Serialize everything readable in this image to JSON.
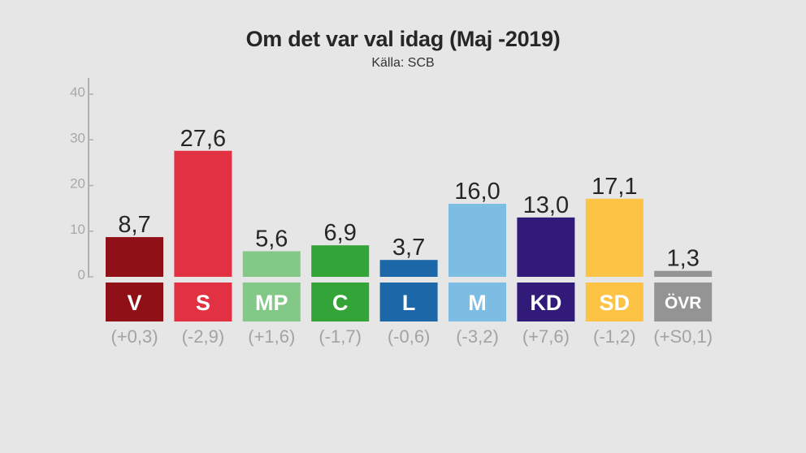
{
  "chart_data": {
    "type": "bar",
    "title": "Om det var val idag (Maj -2019)",
    "subtitle": "Källa: SCB",
    "xlabel": "",
    "ylabel": "",
    "ylim": [
      0,
      40
    ],
    "yticks": [
      "0",
      "10",
      "20",
      "30",
      "40"
    ],
    "ytick_values": [
      0,
      10,
      20,
      30,
      40
    ],
    "grid": false,
    "legend": "none",
    "categories": [
      "V",
      "S",
      "MP",
      "C",
      "L",
      "M",
      "KD",
      "SD",
      "ÖVR"
    ],
    "values": [
      8.7,
      27.6,
      5.6,
      6.9,
      3.7,
      16.0,
      13.0,
      17.1,
      1.3
    ],
    "value_labels": [
      "8,7",
      "27,6",
      "5,6",
      "6,9",
      "3,7",
      "16,0",
      "13,0",
      "17,1",
      "1,3"
    ],
    "change_labels": [
      "(+0,3)",
      "(-2,9)",
      "(+1,6)",
      "(-1,7)",
      "(-0,6)",
      "(-3,2)",
      "(+7,6)",
      "(-1,2)",
      "(+S0,1)"
    ],
    "colors": [
      "#8f1117",
      "#e23142",
      "#82c886",
      "#32a438",
      "#1c67a8",
      "#7dbde4",
      "#311a78",
      "#fdc344",
      "#949494"
    ]
  },
  "colors": {
    "background": "#e6e6e6",
    "axis": "#b0b0b0",
    "tick_text": "#a8a8a8",
    "value_text": "#262626",
    "change_text": "#a3a3a3"
  }
}
